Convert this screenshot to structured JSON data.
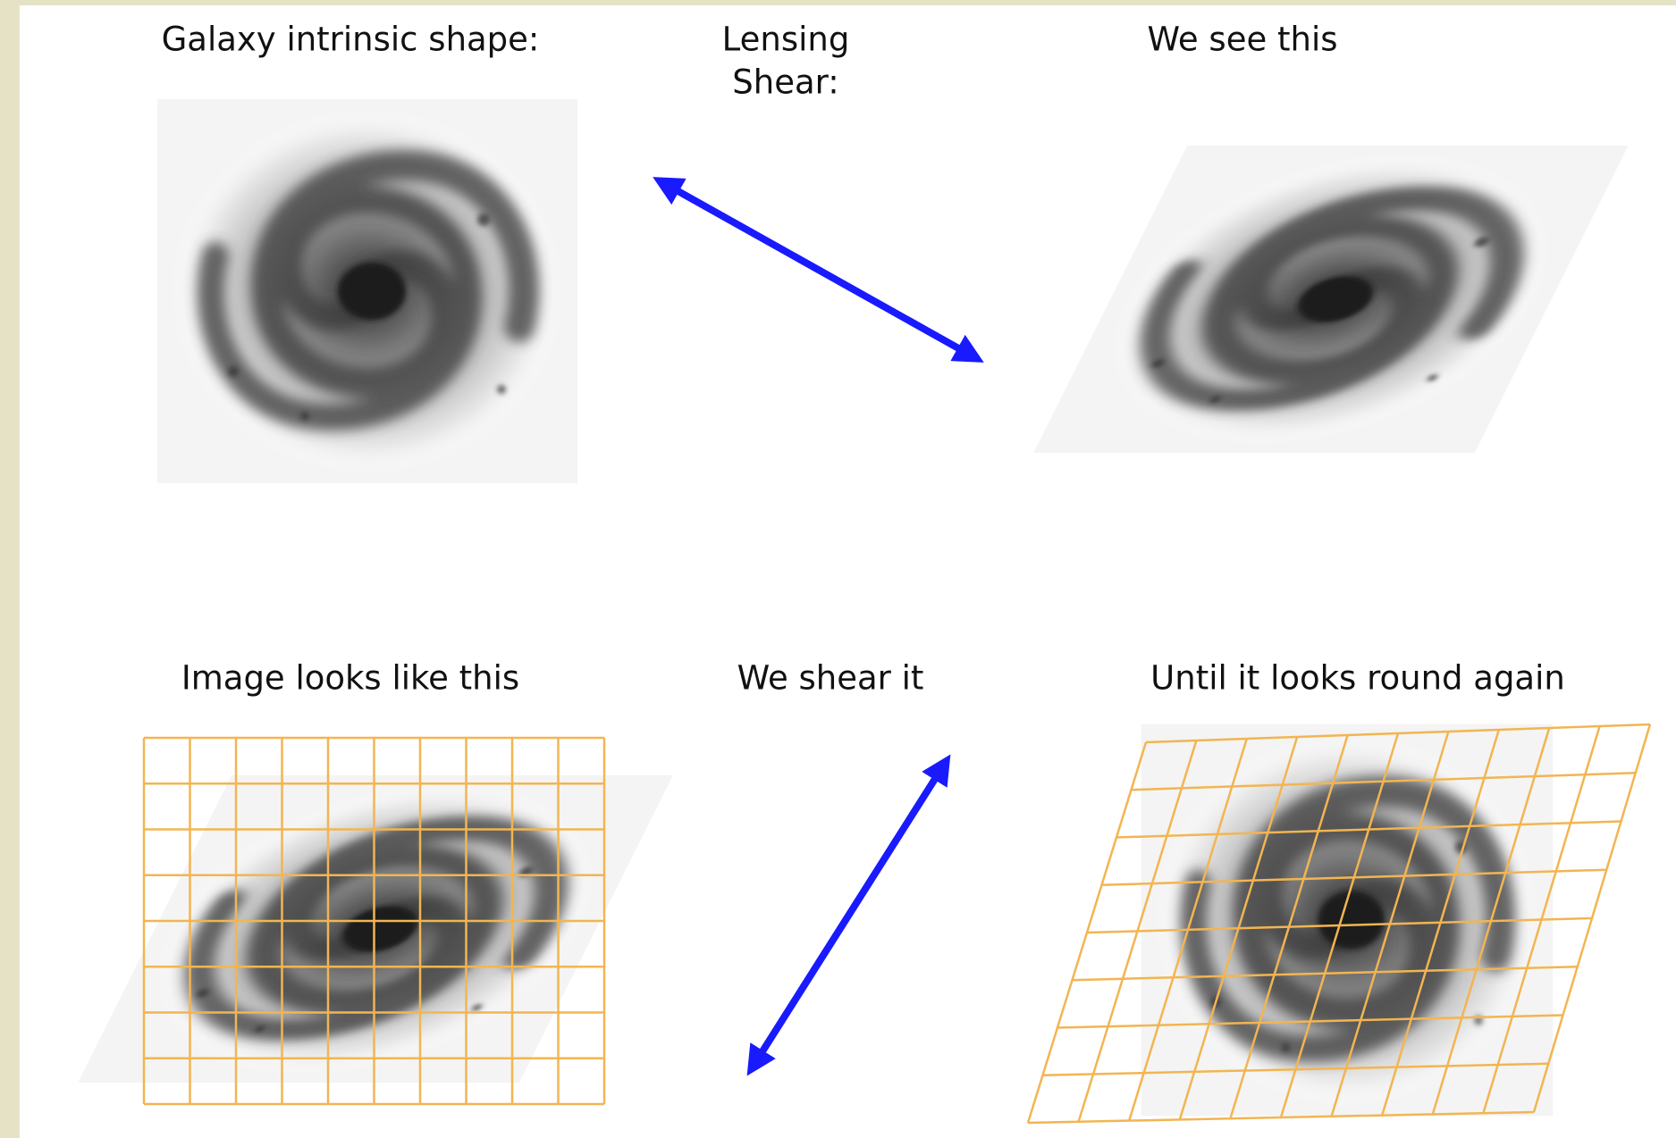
{
  "panels": [
    {
      "title": "Galaxy intrinsic shape:"
    },
    {
      "title_lines": [
        "Lensing",
        "Shear:"
      ]
    },
    {
      "title": "We see this"
    },
    {
      "title": "Image looks like this"
    },
    {
      "title": "We shear it"
    },
    {
      "title": "Until it looks round again"
    }
  ]
}
